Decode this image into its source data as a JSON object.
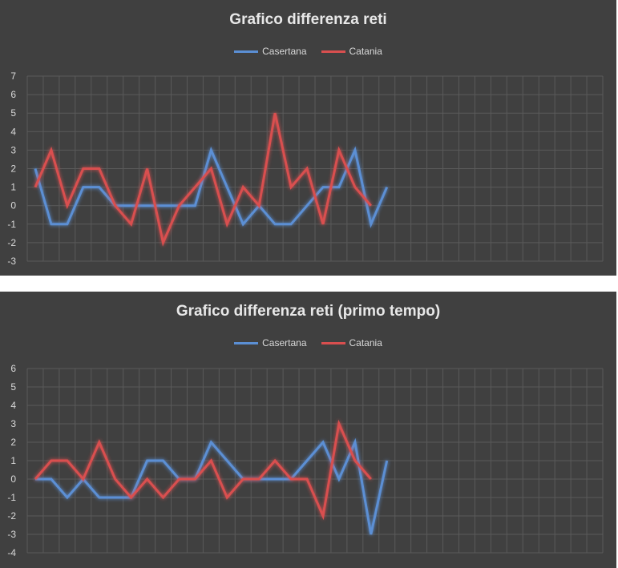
{
  "chart_data": [
    {
      "type": "line",
      "title": "Grafico differenza reti",
      "xlabel": "",
      "ylabel": "",
      "ylim": [
        -3,
        7
      ],
      "yticks": [
        -3,
        -2,
        -1,
        0,
        1,
        2,
        3,
        4,
        5,
        6,
        7
      ],
      "x_count": 36,
      "grid": true,
      "legend": "top-center",
      "series": [
        {
          "name": "Casertana",
          "color": "#5b8fd4",
          "values": [
            2,
            -1,
            -1,
            1,
            1,
            0,
            0,
            0,
            0,
            0,
            0,
            3,
            1,
            -1,
            0,
            -1,
            -1,
            0,
            1,
            1,
            3,
            -1,
            1
          ]
        },
        {
          "name": "Catania",
          "color": "#d94f4f",
          "values": [
            1,
            3,
            0,
            2,
            2,
            0,
            -1,
            2,
            -2,
            0,
            1,
            2,
            -1,
            1,
            0,
            5,
            1,
            2,
            -1,
            3,
            1,
            0
          ]
        }
      ]
    },
    {
      "type": "line",
      "title": "Grafico differenza reti (primo tempo)",
      "xlabel": "",
      "ylabel": "",
      "ylim": [
        -4,
        6
      ],
      "yticks": [
        -4,
        -3,
        -2,
        -1,
        0,
        1,
        2,
        3,
        4,
        5,
        6
      ],
      "x_count": 36,
      "grid": true,
      "legend": "top-center",
      "series": [
        {
          "name": "Casertana",
          "color": "#5b8fd4",
          "values": [
            0,
            0,
            -1,
            0,
            -1,
            -1,
            -1,
            1,
            1,
            0,
            0,
            2,
            1,
            0,
            0,
            0,
            0,
            1,
            2,
            0,
            2,
            -3,
            1
          ]
        },
        {
          "name": "Catania",
          "color": "#d94f4f",
          "values": [
            0,
            1,
            1,
            0,
            2,
            0,
            -1,
            0,
            -1,
            0,
            0,
            1,
            -1,
            0,
            0,
            1,
            0,
            0,
            -2,
            3,
            1,
            0
          ]
        }
      ]
    }
  ]
}
